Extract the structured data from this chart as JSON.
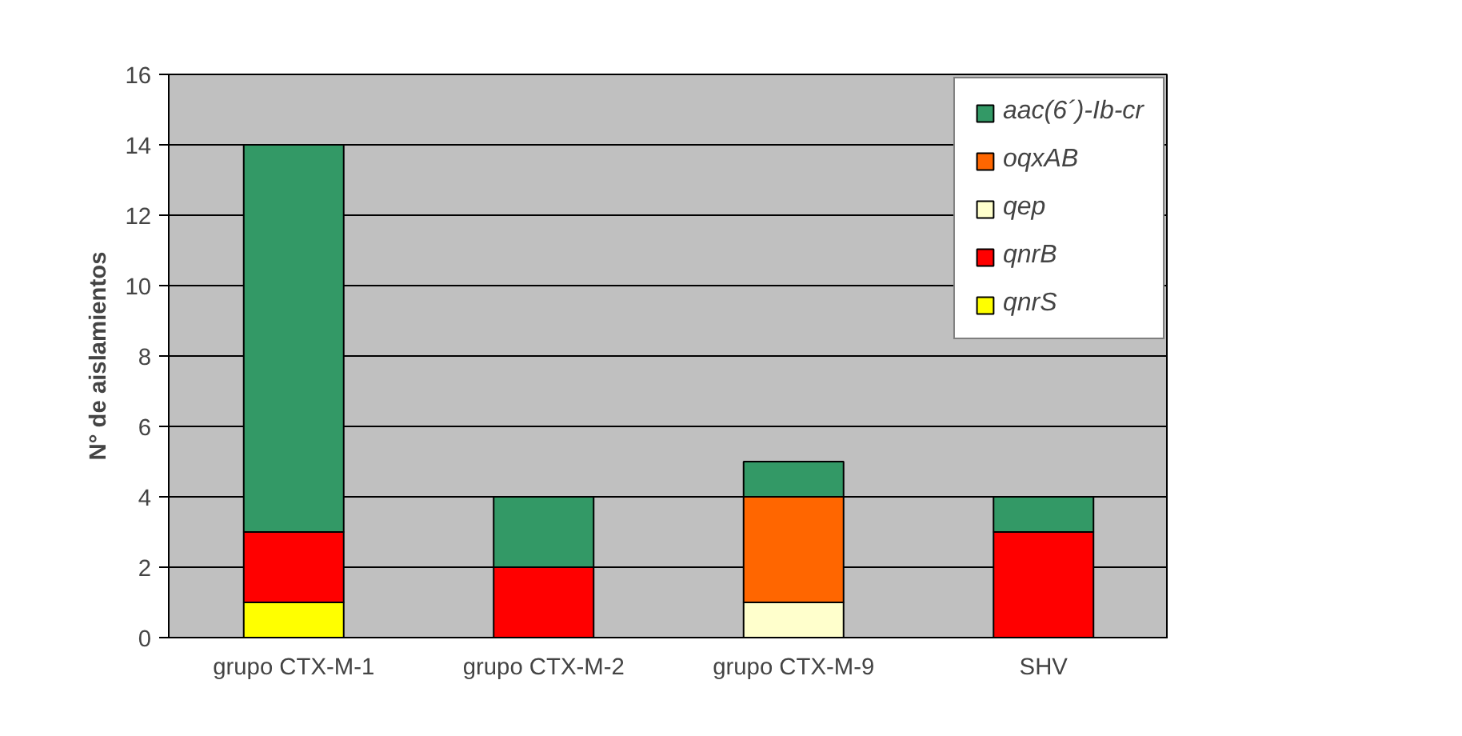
{
  "chart_data": {
    "type": "bar",
    "stacked": true,
    "ylabel": "N° de aislamientos",
    "categories": [
      "grupo CTX-M-1",
      "grupo CTX-M-2",
      "grupo CTX-M-9",
      "SHV"
    ],
    "series": [
      {
        "name": "qnrS",
        "color": "#ffff00",
        "values": [
          1,
          0,
          0,
          0
        ]
      },
      {
        "name": "qnrB",
        "color": "#ff0000",
        "values": [
          2,
          2,
          0,
          3
        ]
      },
      {
        "name": "qep",
        "color": "#ffffcc",
        "values": [
          0,
          0,
          1,
          0
        ]
      },
      {
        "name": "oqxAB",
        "color": "#ff6600",
        "values": [
          0,
          0,
          3,
          0
        ]
      },
      {
        "name": "aac(6´)-Ib-cr",
        "color": "#339966",
        "values": [
          11,
          2,
          1,
          1
        ]
      }
    ],
    "ylim": [
      0,
      16
    ],
    "yticks": [
      0,
      2,
      4,
      6,
      8,
      10,
      12,
      14,
      16
    ],
    "grid": "y",
    "legend": "top right"
  }
}
